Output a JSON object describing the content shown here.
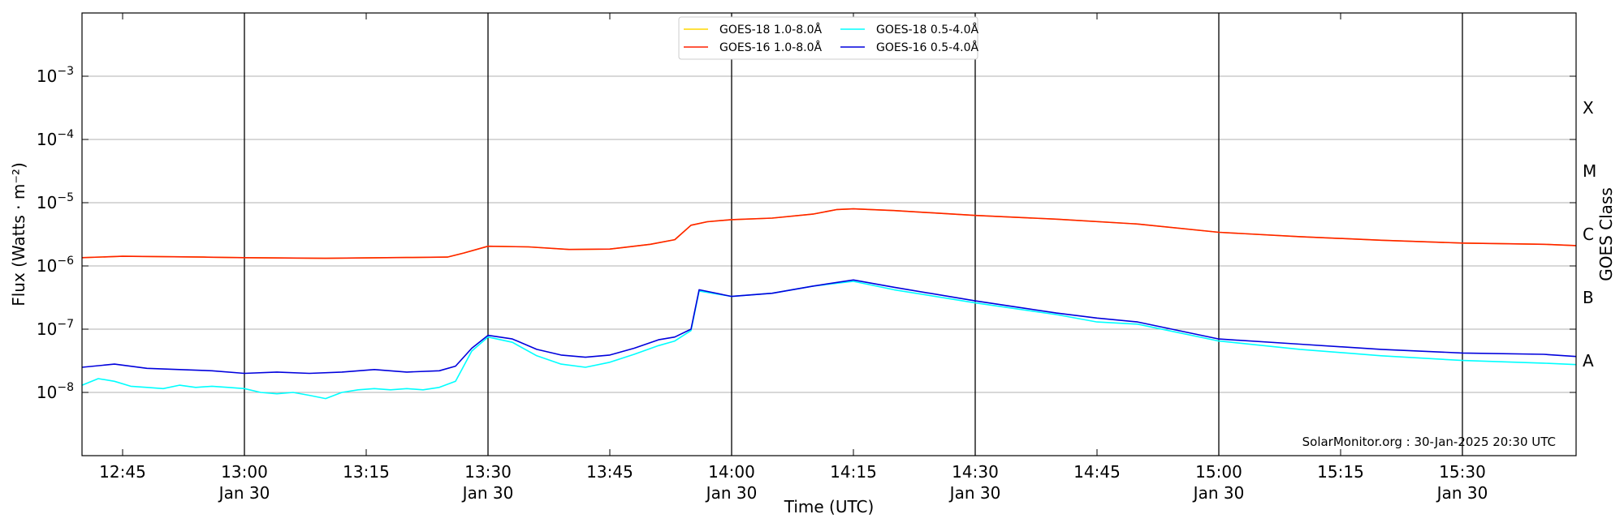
{
  "chart_data": {
    "type": "line",
    "x_axis": {
      "label": "Time (UTC)",
      "range": [
        "12:40",
        "15:44"
      ],
      "ticks": [
        {
          "time": "12:45",
          "label": "12:45",
          "sublabel": ""
        },
        {
          "time": "13:00",
          "label": "13:00",
          "sublabel": "Jan 30"
        },
        {
          "time": "13:15",
          "label": "13:15",
          "sublabel": ""
        },
        {
          "time": "13:30",
          "label": "13:30",
          "sublabel": "Jan 30"
        },
        {
          "time": "13:45",
          "label": "13:45",
          "sublabel": ""
        },
        {
          "time": "14:00",
          "label": "14:00",
          "sublabel": "Jan 30"
        },
        {
          "time": "14:15",
          "label": "14:15",
          "sublabel": ""
        },
        {
          "time": "14:30",
          "label": "14:30",
          "sublabel": "Jan 30"
        },
        {
          "time": "14:45",
          "label": "14:45",
          "sublabel": ""
        },
        {
          "time": "15:00",
          "label": "15:00",
          "sublabel": "Jan 30"
        },
        {
          "time": "15:15",
          "label": "15:15",
          "sublabel": ""
        },
        {
          "time": "15:30",
          "label": "15:30",
          "sublabel": "Jan 30"
        }
      ],
      "vertical_lines": [
        "13:00",
        "13:30",
        "14:00",
        "14:30",
        "15:00",
        "15:30"
      ]
    },
    "y_axis": {
      "label": "Flux (Watts · m⁻²)",
      "scale": "log",
      "range": [
        1e-09,
        0.01
      ],
      "ticks": [
        {
          "value": 1e-08,
          "base": "10",
          "exp": "−8"
        },
        {
          "value": 1e-07,
          "base": "10",
          "exp": "−7"
        },
        {
          "value": 1e-06,
          "base": "10",
          "exp": "−6"
        },
        {
          "value": 1e-05,
          "base": "10",
          "exp": "−5"
        },
        {
          "value": 0.0001,
          "base": "10",
          "exp": "−4"
        },
        {
          "value": 0.001,
          "base": "10",
          "exp": "−3"
        }
      ],
      "grid": true
    },
    "right_axis": {
      "label": "GOES Class",
      "classes": [
        {
          "label": "A",
          "value": 1e-08
        },
        {
          "label": "B",
          "value": 1e-07
        },
        {
          "label": "C",
          "value": 1e-06
        },
        {
          "label": "M",
          "value": 1e-05
        },
        {
          "label": "X",
          "value": 0.0001
        }
      ]
    },
    "legend": {
      "position": "top-center",
      "entries": [
        {
          "label": "GOES-18 1.0-8.0Å",
          "color": "#ffd700"
        },
        {
          "label": "GOES-16 1.0-8.0Å",
          "color": "#ff2000"
        },
        {
          "label": "GOES-18 0.5-4.0Å",
          "color": "#00ffff"
        },
        {
          "label": "GOES-16 0.5-4.0Å",
          "color": "#0000dd"
        }
      ]
    },
    "annotation": "SolarMonitor.org : 30-Jan-2025 20:30 UTC",
    "series": [
      {
        "name": "GOES-18 1.0-8.0Å",
        "color": "#ffd700",
        "x": [
          "12:40",
          "12:45",
          "12:55",
          "13:00",
          "13:10",
          "13:20",
          "13:25",
          "13:27",
          "13:30",
          "13:35",
          "13:40",
          "13:45",
          "13:50",
          "13:53",
          "13:55",
          "13:57",
          "14:00",
          "14:05",
          "14:10",
          "14:13",
          "14:15",
          "14:20",
          "14:30",
          "14:40",
          "14:50",
          "15:00",
          "15:10",
          "15:20",
          "15:30",
          "15:40",
          "15:44"
        ],
        "y": [
          1.35e-06,
          1.42e-06,
          1.38e-06,
          1.35e-06,
          1.32e-06,
          1.36e-06,
          1.38e-06,
          1.6e-06,
          2.05e-06,
          2e-06,
          1.82e-06,
          1.85e-06,
          2.2e-06,
          2.6e-06,
          4.4e-06,
          5e-06,
          5.4e-06,
          5.7e-06,
          6.6e-06,
          7.8e-06,
          8e-06,
          7.5e-06,
          6.3e-06,
          5.5e-06,
          4.6e-06,
          3.4e-06,
          2.9e-06,
          2.55e-06,
          2.3e-06,
          2.2e-06,
          2.1e-06
        ]
      },
      {
        "name": "GOES-16 1.0-8.0Å",
        "color": "#ff2000",
        "x": [
          "12:40",
          "12:45",
          "12:55",
          "13:00",
          "13:10",
          "13:20",
          "13:25",
          "13:27",
          "13:30",
          "13:35",
          "13:40",
          "13:45",
          "13:50",
          "13:53",
          "13:55",
          "13:57",
          "14:00",
          "14:05",
          "14:10",
          "14:13",
          "14:15",
          "14:20",
          "14:30",
          "14:40",
          "14:50",
          "15:00",
          "15:10",
          "15:20",
          "15:30",
          "15:40",
          "15:44"
        ],
        "y": [
          1.35e-06,
          1.42e-06,
          1.38e-06,
          1.35e-06,
          1.32e-06,
          1.36e-06,
          1.38e-06,
          1.6e-06,
          2.05e-06,
          2e-06,
          1.82e-06,
          1.85e-06,
          2.2e-06,
          2.6e-06,
          4.4e-06,
          5e-06,
          5.4e-06,
          5.7e-06,
          6.6e-06,
          7.8e-06,
          8e-06,
          7.5e-06,
          6.3e-06,
          5.5e-06,
          4.6e-06,
          3.4e-06,
          2.9e-06,
          2.55e-06,
          2.3e-06,
          2.2e-06,
          2.1e-06
        ]
      },
      {
        "name": "GOES-18 0.5-4.0Å",
        "color": "#00ffff",
        "x": [
          "12:40",
          "12:42",
          "12:44",
          "12:46",
          "12:48",
          "12:50",
          "12:52",
          "12:54",
          "12:56",
          "12:58",
          "13:00",
          "13:02",
          "13:04",
          "13:06",
          "13:08",
          "13:10",
          "13:12",
          "13:14",
          "13:16",
          "13:18",
          "13:20",
          "13:22",
          "13:24",
          "13:26",
          "13:28",
          "13:30",
          "13:33",
          "13:36",
          "13:39",
          "13:42",
          "13:45",
          "13:48",
          "13:51",
          "13:53",
          "13:55",
          "13:56",
          "14:00",
          "14:05",
          "14:10",
          "14:15",
          "14:20",
          "14:30",
          "14:40",
          "14:45",
          "14:50",
          "15:00",
          "15:10",
          "15:20",
          "15:30",
          "15:40",
          "15:44"
        ],
        "y": [
          1.3e-08,
          1.65e-08,
          1.5e-08,
          1.25e-08,
          1.2e-08,
          1.15e-08,
          1.3e-08,
          1.2e-08,
          1.25e-08,
          1.2e-08,
          1.15e-08,
          1e-08,
          9.5e-09,
          1e-08,
          9e-09,
          8e-09,
          1e-08,
          1.1e-08,
          1.15e-08,
          1.1e-08,
          1.15e-08,
          1.1e-08,
          1.2e-08,
          1.5e-08,
          4.5e-08,
          7.5e-08,
          6.2e-08,
          3.8e-08,
          2.8e-08,
          2.5e-08,
          3e-08,
          4e-08,
          5.5e-08,
          6.5e-08,
          9.5e-08,
          4e-07,
          3.3e-07,
          3.7e-07,
          4.8e-07,
          5.7e-07,
          4.2e-07,
          2.6e-07,
          1.7e-07,
          1.3e-07,
          1.2e-07,
          6.5e-08,
          4.8e-08,
          3.8e-08,
          3.2e-08,
          2.9e-08,
          2.75e-08
        ]
      },
      {
        "name": "GOES-16 0.5-4.0Å",
        "color": "#0000dd",
        "x": [
          "12:40",
          "12:44",
          "12:48",
          "12:52",
          "12:56",
          "13:00",
          "13:04",
          "13:08",
          "13:12",
          "13:16",
          "13:20",
          "13:24",
          "13:26",
          "13:28",
          "13:30",
          "13:33",
          "13:36",
          "13:39",
          "13:42",
          "13:45",
          "13:48",
          "13:51",
          "13:53",
          "13:55",
          "13:56",
          "14:00",
          "14:05",
          "14:10",
          "14:15",
          "14:20",
          "14:30",
          "14:40",
          "14:45",
          "14:50",
          "15:00",
          "15:10",
          "15:20",
          "15:30",
          "15:40",
          "15:44"
        ],
        "y": [
          2.5e-08,
          2.8e-08,
          2.4e-08,
          2.3e-08,
          2.2e-08,
          2e-08,
          2.1e-08,
          2e-08,
          2.1e-08,
          2.3e-08,
          2.1e-08,
          2.2e-08,
          2.6e-08,
          5e-08,
          8e-08,
          7e-08,
          4.8e-08,
          3.9e-08,
          3.6e-08,
          3.9e-08,
          5e-08,
          6.8e-08,
          7.5e-08,
          1e-07,
          4.2e-07,
          3.3e-07,
          3.7e-07,
          4.8e-07,
          6e-07,
          4.6e-07,
          2.8e-07,
          1.8e-07,
          1.5e-07,
          1.3e-07,
          7e-08,
          5.8e-08,
          4.8e-08,
          4.2e-08,
          4e-08,
          3.7e-08
        ]
      }
    ]
  }
}
